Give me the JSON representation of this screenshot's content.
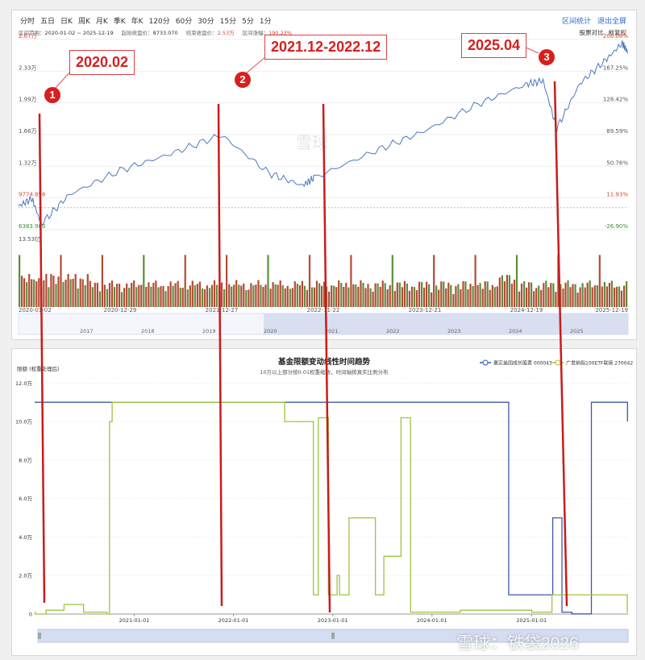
{
  "toolbar": {
    "periods": [
      "分时",
      "五日",
      "日K",
      "周K",
      "月K",
      "季K",
      "年K",
      "120分",
      "60分",
      "30分",
      "15分",
      "5分",
      "1分"
    ],
    "actions": [
      "区间统计",
      "退出全屏"
    ]
  },
  "summary": {
    "range_label": "区间范围：",
    "range_value": "2020-01-02 ~ 2025-12-19",
    "start_label": "起始收盘价：",
    "start_value": "8733.070",
    "end_label": "结束收盘价：",
    "end_value": "2.53万",
    "change_label": "区间涨幅：",
    "change_value": "190.23%",
    "compare_label": "股票对比",
    "adjust_label": "前复权"
  },
  "callouts": [
    {
      "num": "1",
      "text": "2020.02"
    },
    {
      "num": "2",
      "text": "2021.12-2022.12"
    },
    {
      "num": "3",
      "text": "2025.04"
    }
  ],
  "watermark": {
    "center": "雪球",
    "corner": "雪球：铁袋2026"
  },
  "chart_data": [
    {
      "type": "line",
      "title": "",
      "xlabel": "",
      "ylabel": "",
      "x": [
        "2020-01-02",
        "2020-02-19",
        "2020-03-23",
        "2020-06-30",
        "2020-12-29",
        "2021-06-30",
        "2021-12-27",
        "2022-06-16",
        "2022-10-13",
        "2022-11-22",
        "2023-06-30",
        "2023-12-21",
        "2024-06-30",
        "2024-12-19",
        "2025-02-18",
        "2025-04-08",
        "2025-06-30",
        "2025-09-30",
        "2025-11-28",
        "2025-12-19"
      ],
      "series": [
        {
          "name": "",
          "values": [
            8900,
            9700,
            7000,
            10100,
            12700,
            14500,
            16500,
            12400,
            11100,
            11900,
            14800,
            16900,
            19800,
            21900,
            22300,
            17200,
            22000,
            24500,
            26300,
            25300
          ]
        }
      ],
      "ylim": [
        6383.9,
        26700
      ],
      "left_ticks": [
        "2.67万",
        "2.33万",
        "1.99万",
        "1.66万",
        "1.32万",
        "9774.856",
        "6383.900"
      ],
      "right_ticks": [
        "206.08%",
        "167.25%",
        "128.42%",
        "89.59%",
        "50.76%",
        "11.93%",
        "-26.90%"
      ],
      "volume_max_label": "13.53亿",
      "x_ticks": [
        "2020-01-02",
        "2020-12-29",
        "2021-12-27",
        "2022-11-22",
        "2023-12-21",
        "2024-12-19",
        "2025-12-19"
      ],
      "navigator_years": [
        "2017",
        "2018",
        "2019",
        "2020",
        "2021",
        "2022",
        "2023",
        "2024",
        "2025"
      ]
    },
    {
      "type": "line",
      "title": "基金限额变动线性时间趋势",
      "subtitle": "10万以上部分按0.01权重缩放，时间轴按真实比例分布",
      "ylabel": "限额 (权重处理后)",
      "xlabel": "",
      "y_ticks": [
        "12.0万",
        "10.0万",
        "8.0万",
        "6.0万",
        "4.0万",
        "2.0万",
        "0"
      ],
      "x_ticks": [
        "2021-01-01",
        "2022-01-01",
        "2023-01-01",
        "2024-01-01",
        "2025-01-01"
      ],
      "ylim": [
        0,
        120000
      ],
      "legend_position": "top-right",
      "series": [
        {
          "name": "嘉实美国成长股票 000043",
          "color": "#3b5aa5",
          "dates": [
            "2020-01-01",
            "2024-10-08",
            "2024-10-09",
            "2025-03-19",
            "2025-03-20",
            "2025-04-22",
            "2025-04-23",
            "2025-05-28",
            "2025-05-29",
            "2025-08-08",
            "2025-08-09",
            "2025-12-19",
            "2025-12-20"
          ],
          "values": [
            110000,
            110000,
            10000,
            10000,
            50000,
            50000,
            1000,
            1000,
            100,
            100,
            110000,
            110000,
            100000
          ]
        },
        {
          "name": "广发纳指100ETF联接 270042",
          "color": "#9ec43f",
          "dates": [
            "2020-01-01",
            "2020-01-03",
            "2020-02-05",
            "2020-02-12",
            "2020-04-18",
            "2020-06-29",
            "2020-07-02",
            "2020-09-23",
            "2020-09-28",
            "2020-09-30",
            "2020-10-02",
            "2020-10-04",
            "2020-10-12",
            "2020-10-15",
            "2022-07-08",
            "2022-10-22",
            "2022-11-04",
            "2022-11-09",
            "2022-11-16",
            "2022-12-16",
            "2023-01-10",
            "2023-01-17",
            "2023-01-26",
            "2023-03-02",
            "2023-03-08",
            "2023-06-07",
            "2023-07-08",
            "2023-09-09",
            "2023-09-14",
            "2023-10-14",
            "2023-12-19",
            "2024-04-14",
            "2024-05-20",
            "2025-01-02",
            "2025-01-26",
            "2025-03-17",
            "2025-12-19"
          ],
          "values": [
            1000,
            0,
            0,
            2000,
            5000,
            1000,
            1000,
            0,
            0,
            0,
            100000,
            100000,
            110000,
            110000,
            100000,
            10000,
            10000,
            102000,
            102000,
            10000,
            10000,
            20000,
            10000,
            50000,
            50000,
            10000,
            30000,
            102000,
            102000,
            1000,
            1000,
            2000,
            2000,
            1000,
            1000,
            10000,
            500
          ]
        }
      ]
    }
  ]
}
